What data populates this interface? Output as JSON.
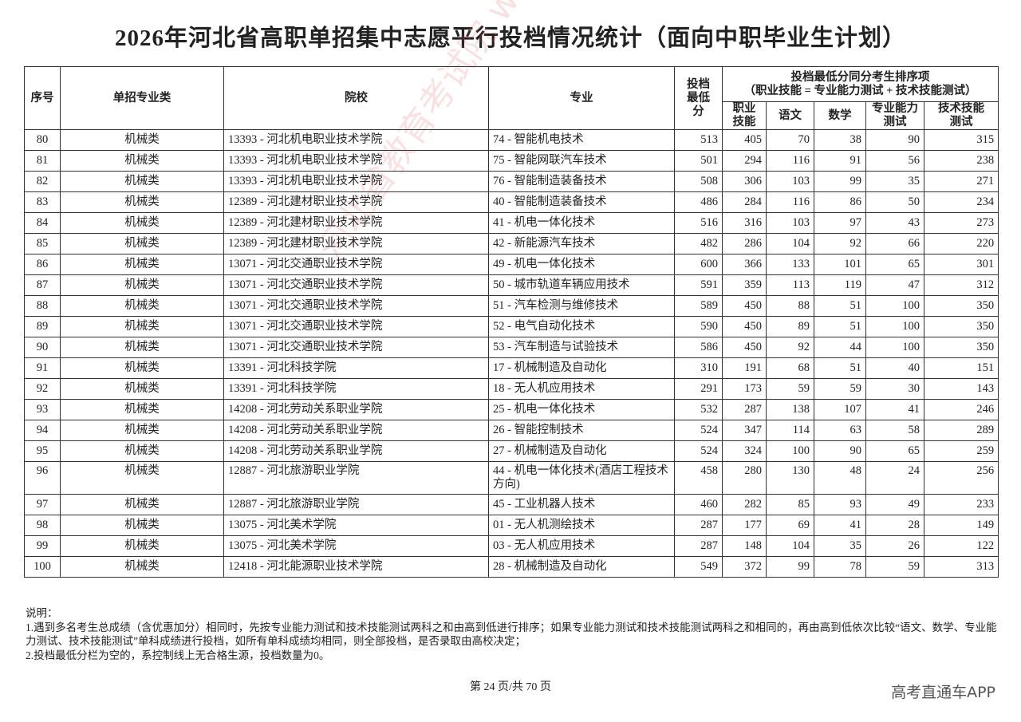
{
  "title": "2026年河北省高职单招集中志愿平行投档情况统计（面向中职毕业生计划）",
  "table": {
    "headers": {
      "seq": "序号",
      "category": "单招专业类",
      "school": "院校",
      "major": "专业",
      "min_score": "投档最低分",
      "group_title": "投档最低分同分考生排序项",
      "group_subtitle": "（职业技能 = 专业能力测试 + 技术技能测试）",
      "skill": "职业技能",
      "chinese": "语文",
      "math": "数学",
      "prof_test": "专业能力测试",
      "tech_test": "技术技能测试"
    },
    "rows": [
      [
        "80",
        "机械类",
        "13393 - 河北机电职业技术学院",
        "74 - 智能机电技术",
        "513",
        "405",
        "70",
        "38",
        "90",
        "315"
      ],
      [
        "81",
        "机械类",
        "13393 - 河北机电职业技术学院",
        "75 - 智能网联汽车技术",
        "501",
        "294",
        "116",
        "91",
        "56",
        "238"
      ],
      [
        "82",
        "机械类",
        "13393 - 河北机电职业技术学院",
        "76 - 智能制造装备技术",
        "508",
        "306",
        "103",
        "99",
        "35",
        "271"
      ],
      [
        "83",
        "机械类",
        "12389 - 河北建材职业技术学院",
        "40 - 智能制造装备技术",
        "486",
        "284",
        "116",
        "86",
        "50",
        "234"
      ],
      [
        "84",
        "机械类",
        "12389 - 河北建材职业技术学院",
        "41 - 机电一体化技术",
        "516",
        "316",
        "103",
        "97",
        "43",
        "273"
      ],
      [
        "85",
        "机械类",
        "12389 - 河北建材职业技术学院",
        "42 - 新能源汽车技术",
        "482",
        "286",
        "104",
        "92",
        "66",
        "220"
      ],
      [
        "86",
        "机械类",
        "13071 - 河北交通职业技术学院",
        "49 - 机电一体化技术",
        "600",
        "366",
        "133",
        "101",
        "65",
        "301"
      ],
      [
        "87",
        "机械类",
        "13071 - 河北交通职业技术学院",
        "50 - 城市轨道车辆应用技术",
        "591",
        "359",
        "113",
        "119",
        "47",
        "312"
      ],
      [
        "88",
        "机械类",
        "13071 - 河北交通职业技术学院",
        "51 - 汽车检测与维修技术",
        "589",
        "450",
        "88",
        "51",
        "100",
        "350"
      ],
      [
        "89",
        "机械类",
        "13071 - 河北交通职业技术学院",
        "52 - 电气自动化技术",
        "590",
        "450",
        "89",
        "51",
        "100",
        "350"
      ],
      [
        "90",
        "机械类",
        "13071 - 河北交通职业技术学院",
        "53 - 汽车制造与试验技术",
        "586",
        "450",
        "92",
        "44",
        "100",
        "350"
      ],
      [
        "91",
        "机械类",
        "13391 - 河北科技学院",
        "17 - 机械制造及自动化",
        "310",
        "191",
        "68",
        "51",
        "40",
        "151"
      ],
      [
        "92",
        "机械类",
        "13391 - 河北科技学院",
        "18 - 无人机应用技术",
        "291",
        "173",
        "59",
        "59",
        "30",
        "143"
      ],
      [
        "93",
        "机械类",
        "14208 - 河北劳动关系职业学院",
        "25 - 机电一体化技术",
        "532",
        "287",
        "138",
        "107",
        "41",
        "246"
      ],
      [
        "94",
        "机械类",
        "14208 - 河北劳动关系职业学院",
        "26 - 智能控制技术",
        "524",
        "347",
        "114",
        "63",
        "58",
        "289"
      ],
      [
        "95",
        "机械类",
        "14208 - 河北劳动关系职业学院",
        "27 - 机械制造及自动化",
        "524",
        "324",
        "100",
        "90",
        "65",
        "259"
      ],
      [
        "96",
        "机械类",
        "12887 - 河北旅游职业学院",
        "44 - 机电一体化技术(酒店工程技术方向)",
        "458",
        "280",
        "130",
        "48",
        "24",
        "256"
      ],
      [
        "97",
        "机械类",
        "12887 - 河北旅游职业学院",
        "45 - 工业机器人技术",
        "460",
        "282",
        "85",
        "93",
        "49",
        "233"
      ],
      [
        "98",
        "机械类",
        "13075 - 河北美术学院",
        "01 - 无人机测绘技术",
        "287",
        "177",
        "69",
        "41",
        "28",
        "149"
      ],
      [
        "99",
        "机械类",
        "13075 - 河北美术学院",
        "03 - 无人机应用技术",
        "287",
        "148",
        "104",
        "35",
        "26",
        "122"
      ],
      [
        "100",
        "机械类",
        "12418 - 河北能源职业技术学院",
        "28 - 机械制造及自动化",
        "549",
        "372",
        "99",
        "78",
        "59",
        "313"
      ]
    ]
  },
  "notes": {
    "heading": "说明：",
    "item1": "1.遇到多名考生总成绩（含优惠加分）相同时，先按专业能力测试和技术技能测试两科之和由高到低进行排序；如果专业能力测试和技术技能测试两科之和相同的，再由高到低依次比较“语文、数学、专业能力测试、技术技能测试”单科成绩进行投档，如所有单科成绩均相同，则全部投档，是否录取由高校决定；",
    "item2": "2.投档最低分栏为空的，系控制线上无合格生源，投档数量为0。"
  },
  "footer": {
    "page": "第 24 页/共 70 页"
  },
  "watermark": "河北省教育考试院 www.hebeea.edu.cn",
  "brand": "高考直通车APP"
}
